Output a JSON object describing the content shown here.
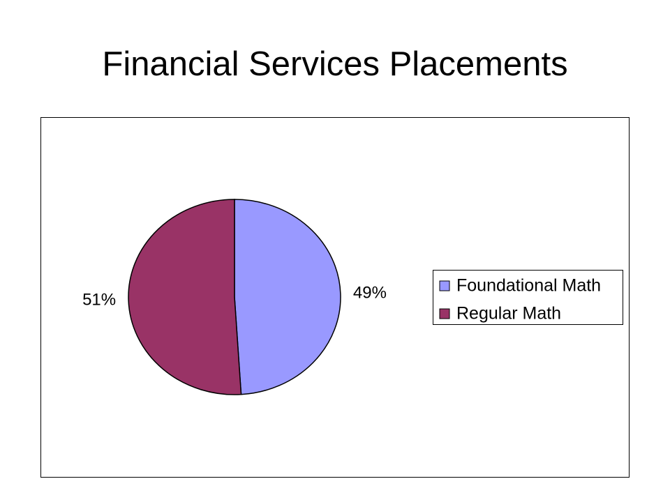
{
  "chart_data": {
    "type": "pie",
    "title": "Financial Services Placements",
    "categories": [
      "Foundational Math",
      "Regular Math"
    ],
    "values": [
      49,
      51
    ],
    "value_labels": [
      "49%",
      "51%"
    ],
    "colors": [
      "#9999ff",
      "#993366"
    ],
    "legend": "right"
  }
}
